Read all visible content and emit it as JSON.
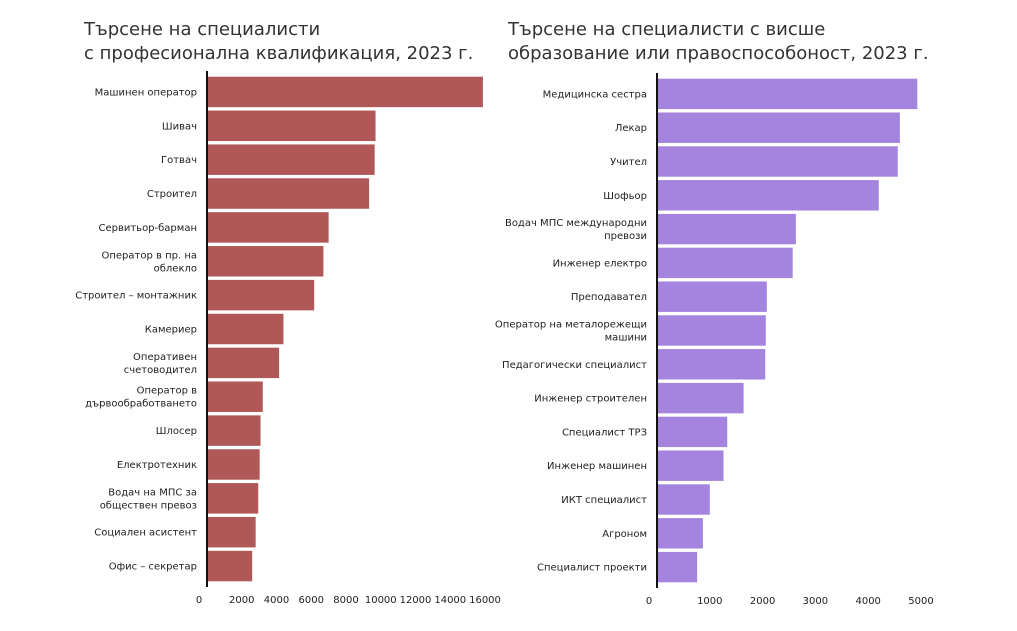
{
  "chart_data": [
    {
      "type": "bar",
      "orientation": "horizontal",
      "title_lines": [
        "Търсене на специалисти",
        "с професионална квалификация, 2023 г."
      ],
      "categories": [
        "Машинен оператор",
        "Шивач",
        "Готвач",
        "Строител",
        "Сервитьор-барман",
        "Оператор в пр. на облекло",
        "Строител – монтажник",
        "Камериер",
        "Оперативен счетоводител",
        "Оператор в дървообработването",
        "Шлосер",
        "Електротехник",
        "Водач на МПС за обществен превоз",
        "Социален асистент",
        "Офис – секретар"
      ],
      "values": [
        15880,
        9700,
        9650,
        9330,
        7000,
        6700,
        6170,
        4400,
        4150,
        3210,
        3080,
        3030,
        2950,
        2800,
        2600
      ],
      "xlim": [
        0,
        16000
      ],
      "xticks": [
        0,
        2000,
        4000,
        6000,
        8000,
        10000,
        12000,
        14000,
        16000
      ],
      "grid": false,
      "color": "#b05858"
    },
    {
      "type": "bar",
      "orientation": "horizontal",
      "title_lines": [
        "Търсене на специалисти с висше",
        "образование или правоспособоност, 2023 г."
      ],
      "categories": [
        "Медицинска сестра",
        "Лекар",
        "Учител",
        "Шофьор",
        "Водач МПС международни превози",
        "Инженер електро",
        "Преподавател",
        "Оператор на металорежещи машини",
        "Педагогически специалист",
        "Инженер строителен",
        "Специалист ТРЗ",
        "Инженер машинен",
        "ИКТ специалист",
        "Агроном",
        "Специалист проекти"
      ],
      "values": [
        4930,
        4600,
        4560,
        4200,
        2630,
        2570,
        2080,
        2060,
        2050,
        1640,
        1330,
        1260,
        1000,
        870,
        760
      ],
      "xlim": [
        0,
        5000
      ],
      "xticks": [
        0,
        1000,
        2000,
        3000,
        4000,
        5000
      ],
      "grid": false,
      "color": "#a484de"
    }
  ]
}
